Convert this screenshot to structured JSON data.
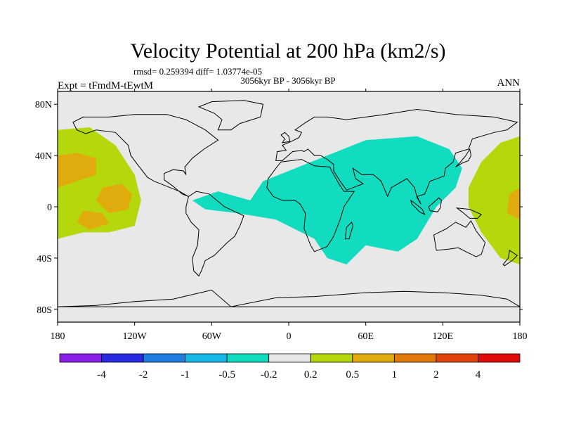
{
  "chart_data": {
    "type": "heatmap",
    "title": "Velocity Potential at 200 hPa (km2/s)",
    "stats_line": "rmsd= 0.259394 diff= 1.03774e-05",
    "period_line": "3056kyr BP - 3056kyr BP",
    "left_label": "Expt = tFmdM-tEwtM",
    "right_label": "ANN",
    "x_ticks": [
      "180",
      "120W",
      "60W",
      "0",
      "60E",
      "120E",
      "180"
    ],
    "x_tick_values": [
      -180,
      -120,
      -60,
      0,
      60,
      120,
      180
    ],
    "y_ticks": [
      "80N",
      "40N",
      "0",
      "40S",
      "80S"
    ],
    "y_tick_values": [
      80,
      40,
      0,
      -40,
      -80
    ],
    "xlim": [
      -180,
      180
    ],
    "ylim": [
      -90,
      90
    ],
    "colorbar": {
      "labels": [
        "-4",
        "-2",
        "-1",
        "-0.5",
        "-0.2",
        "0.2",
        "0.5",
        "1",
        "2",
        "4"
      ],
      "colors": [
        "#8a1fe6",
        "#2a2ae0",
        "#1e7fe0",
        "#17b7e6",
        "#12dcc0",
        "#e8e8e8",
        "#b5d80c",
        "#e0ab0c",
        "#e0780c",
        "#e0460c",
        "#e00c0c"
      ]
    },
    "fields": [
      {
        "name": "negative-anomaly-eurasia-africa",
        "level": "-0.5 to -0.2",
        "color": "#12dcc0",
        "outline": [
          [
            -30,
            5
          ],
          [
            -20,
            20
          ],
          [
            0,
            28
          ],
          [
            30,
            40
          ],
          [
            60,
            52
          ],
          [
            100,
            55
          ],
          [
            125,
            45
          ],
          [
            135,
            30
          ],
          [
            130,
            15
          ],
          [
            115,
            0
          ],
          [
            100,
            -25
          ],
          [
            85,
            -35
          ],
          [
            60,
            -30
          ],
          [
            45,
            -45
          ],
          [
            30,
            -40
          ],
          [
            20,
            -25
          ],
          [
            -10,
            -10
          ],
          [
            -40,
            -5
          ],
          [
            -65,
            -2
          ],
          [
            -75,
            5
          ],
          [
            -55,
            12
          ]
        ]
      },
      {
        "name": "positive-anomaly-north-pacific",
        "level": "0.2 to 0.5",
        "color": "#b5d80c",
        "outline": [
          [
            -180,
            60
          ],
          [
            -155,
            62
          ],
          [
            -135,
            48
          ],
          [
            -120,
            25
          ],
          [
            -115,
            5
          ],
          [
            -120,
            -15
          ],
          [
            -140,
            -20
          ],
          [
            -160,
            -20
          ],
          [
            -180,
            -25
          ]
        ]
      },
      {
        "name": "positive-anomaly-west-pacific",
        "level": "0.2 to 0.5",
        "color": "#b5d80c",
        "outline": [
          [
            180,
            55
          ],
          [
            165,
            50
          ],
          [
            150,
            35
          ],
          [
            140,
            15
          ],
          [
            140,
            0
          ],
          [
            150,
            -20
          ],
          [
            165,
            -40
          ],
          [
            180,
            -45
          ]
        ]
      },
      {
        "name": "positive-core-north-pacific-1",
        "level": "0.5 to 1",
        "color": "#e0ab0c",
        "outline": [
          [
            -180,
            40
          ],
          [
            -165,
            42
          ],
          [
            -150,
            38
          ],
          [
            -150,
            25
          ],
          [
            -165,
            20
          ],
          [
            -180,
            15
          ]
        ]
      },
      {
        "name": "positive-core-north-pacific-2",
        "level": "0.5 to 1",
        "color": "#e0ab0c",
        "outline": [
          [
            -145,
            15
          ],
          [
            -130,
            18
          ],
          [
            -122,
            10
          ],
          [
            -125,
            -2
          ],
          [
            -140,
            -5
          ],
          [
            -150,
            5
          ]
        ]
      },
      {
        "name": "positive-core-central-pacific",
        "level": "0.5 to 1",
        "color": "#e0ab0c",
        "outline": [
          [
            -160,
            -3
          ],
          [
            -145,
            -5
          ],
          [
            -140,
            -13
          ],
          [
            -155,
            -18
          ],
          [
            -165,
            -12
          ]
        ]
      },
      {
        "name": "positive-core-west-pacific",
        "level": "0.5 to 1",
        "color": "#e0ab0c",
        "outline": [
          [
            180,
            15
          ],
          [
            172,
            10
          ],
          [
            170,
            -5
          ],
          [
            180,
            -10
          ]
        ]
      }
    ]
  }
}
